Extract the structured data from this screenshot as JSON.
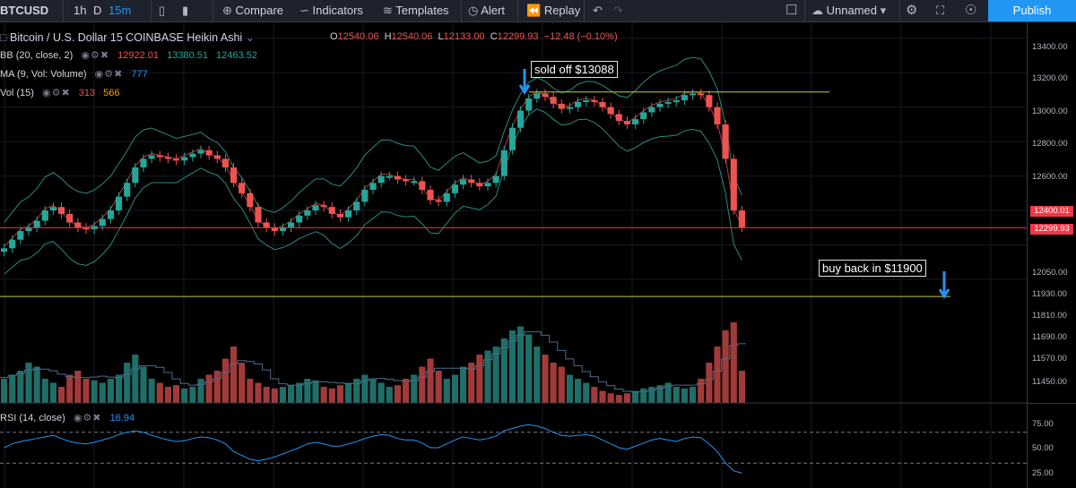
{
  "toolbar": {
    "symbol": "BTCUSD",
    "intervals": [
      "1h",
      "D",
      "15m"
    ],
    "active_interval": "15m",
    "compare": "Compare",
    "indicators": "Indicators",
    "templates": "Templates",
    "alert": "Alert",
    "replay": "Replay",
    "layout_name": "Unnamed",
    "publish": "Publish"
  },
  "legend": {
    "title": "Bitcoin / U.S. Dollar  15  COINBASE  Heikin Ashi",
    "open_label": "O",
    "open": "12540.06",
    "high_label": "H",
    "high": "12540.06",
    "low_label": "L",
    "low": "12133.00",
    "close_label": "C",
    "close": "12299.93",
    "change": "−12.48 (−0.10%)",
    "bb_label": "BB (20, close, 2)",
    "bb_values": [
      "12922.01",
      "13380.51",
      "12463.52"
    ],
    "ma_label": "MA (9, Vol: Volume)",
    "ma_value": "777",
    "vol_label": "Vol (15)",
    "vol_values": [
      "313",
      "566"
    ],
    "rsi_label": "RSI (14, close)",
    "rsi_value": "16.94"
  },
  "annotations": {
    "sold": "sold off  $13088",
    "buy": "buy back in $11900"
  },
  "axis": {
    "price_labels": [
      "13400.00",
      "13200.00",
      "13000.00",
      "12800.00",
      "12600.00",
      "12050.00",
      "11930.00",
      "11810.00",
      "11690.00",
      "11570.00",
      "11450.00"
    ],
    "tag_high": "12400.01",
    "tag_current": "12299.93",
    "rsi_labels": [
      "75.00",
      "50.00",
      "25.00"
    ]
  },
  "colors": {
    "up": "#26a69a",
    "down": "#ef5350",
    "bb": "#2a8a7a",
    "accent": "#2196f3"
  },
  "chart_data": {
    "type": "candlestick",
    "series_name": "Bitcoin / U.S. Dollar (Heikin Ashi)",
    "ylim": [
      11880,
      13430
    ],
    "closes": [
      12180,
      12230,
      12280,
      12300,
      12340,
      12400,
      12420,
      12380,
      12330,
      12300,
      12290,
      12310,
      12350,
      12400,
      12480,
      12560,
      12650,
      12700,
      12720,
      12710,
      12700,
      12690,
      12710,
      12730,
      12750,
      12720,
      12700,
      12650,
      12560,
      12500,
      12420,
      12330,
      12300,
      12280,
      12300,
      12330,
      12370,
      12400,
      12430,
      12420,
      12380,
      12360,
      12400,
      12450,
      12520,
      12560,
      12600,
      12600,
      12580,
      12570,
      12570,
      12520,
      12460,
      12450,
      12500,
      12550,
      12580,
      12560,
      12540,
      12560,
      12600,
      12750,
      12880,
      12980,
      13050,
      13080,
      13060,
      13020,
      12990,
      13000,
      13030,
      13040,
      13030,
      13000,
      12960,
      12920,
      12900,
      12930,
      12970,
      13000,
      13020,
      13030,
      13040,
      13070,
      13080,
      13070,
      13000,
      12900,
      12700,
      12400,
      12300
    ],
    "rsi": [
      50,
      55,
      58,
      60,
      62,
      64,
      66,
      62,
      58,
      56,
      55,
      57,
      60,
      63,
      67,
      70,
      72,
      70,
      66,
      63,
      60,
      58,
      59,
      62,
      64,
      63,
      60,
      55,
      45,
      40,
      35,
      33,
      35,
      38,
      42,
      46,
      50,
      55,
      57,
      55,
      52,
      52,
      55,
      58,
      62,
      65,
      67,
      66,
      62,
      60,
      60,
      56,
      50,
      50,
      55,
      60,
      64,
      62,
      60,
      62,
      65,
      72,
      75,
      78,
      80,
      78,
      75,
      70,
      66,
      65,
      66,
      67,
      65,
      60,
      55,
      50,
      48,
      52,
      56,
      60,
      62,
      60,
      58,
      62,
      64,
      63,
      55,
      45,
      30,
      20,
      17
    ],
    "volume_sizes": [
      0.3,
      0.35,
      0.4,
      0.5,
      0.45,
      0.3,
      0.25,
      0.2,
      0.35,
      0.4,
      0.3,
      0.28,
      0.25,
      0.3,
      0.35,
      0.5,
      0.6,
      0.45,
      0.3,
      0.25,
      0.2,
      0.22,
      0.18,
      0.2,
      0.3,
      0.35,
      0.4,
      0.55,
      0.7,
      0.5,
      0.3,
      0.25,
      0.2,
      0.18,
      0.2,
      0.22,
      0.25,
      0.3,
      0.28,
      0.2,
      0.18,
      0.22,
      0.25,
      0.3,
      0.35,
      0.3,
      0.25,
      0.2,
      0.22,
      0.3,
      0.35,
      0.45,
      0.55,
      0.4,
      0.3,
      0.35,
      0.45,
      0.5,
      0.6,
      0.65,
      0.7,
      0.8,
      0.9,
      0.95,
      0.85,
      0.7,
      0.6,
      0.5,
      0.45,
      0.35,
      0.3,
      0.25,
      0.2,
      0.15,
      0.12,
      0.1,
      0.12,
      0.15,
      0.18,
      0.2,
      0.22,
      0.25,
      0.2,
      0.18,
      0.2,
      0.3,
      0.5,
      0.7,
      0.9,
      1.0,
      0.4
    ],
    "sold_level": 13088,
    "buy_level": 11900,
    "current_price": 12299.93
  }
}
